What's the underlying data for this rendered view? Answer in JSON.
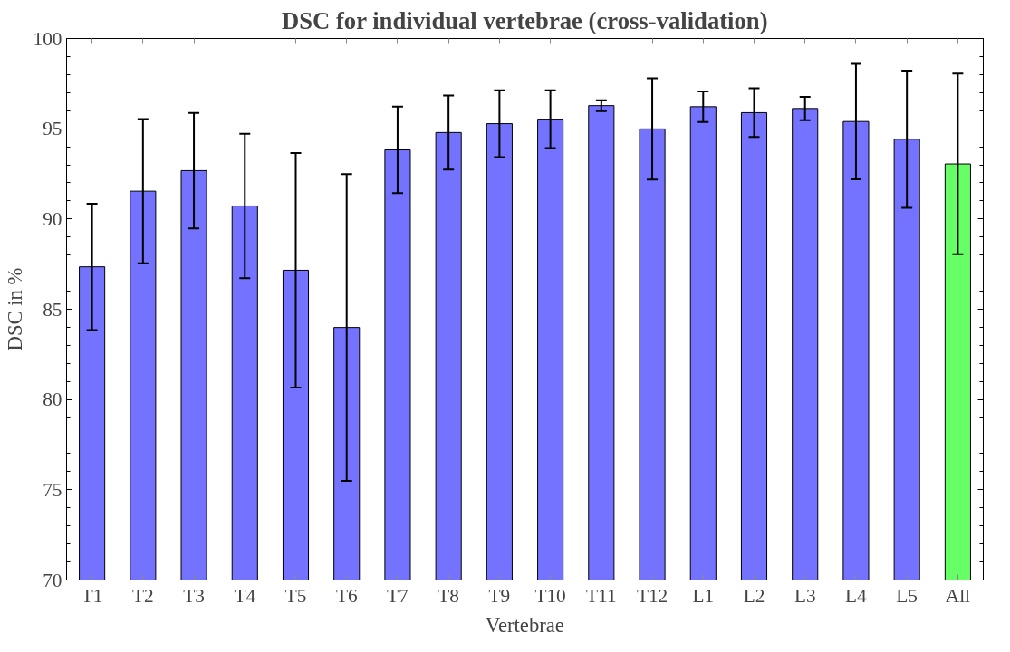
{
  "chart_data": {
    "type": "bar",
    "title": "DSC for individual vertebrae (cross-validation)",
    "xlabel": "Vertebrae",
    "ylabel": "DSC in %",
    "categories": [
      "T1",
      "T2",
      "T3",
      "T4",
      "T5",
      "T6",
      "T7",
      "T8",
      "T9",
      "T10",
      "T11",
      "T12",
      "L1",
      "L2",
      "L3",
      "L4",
      "L5",
      "All"
    ],
    "values": [
      87.35,
      91.54,
      92.68,
      90.72,
      87.16,
      83.99,
      93.83,
      94.79,
      95.28,
      95.53,
      96.28,
      94.99,
      96.22,
      95.89,
      96.12,
      95.4,
      94.42,
      93.05
    ],
    "errors": [
      3.5,
      4.0,
      3.2,
      4.0,
      6.5,
      8.5,
      2.4,
      2.05,
      1.85,
      1.6,
      0.3,
      2.8,
      0.85,
      1.35,
      0.65,
      3.2,
      3.8,
      5.0
    ],
    "colors": [
      "#7373ff",
      "#7373ff",
      "#7373ff",
      "#7373ff",
      "#7373ff",
      "#7373ff",
      "#7373ff",
      "#7373ff",
      "#7373ff",
      "#7373ff",
      "#7373ff",
      "#7373ff",
      "#7373ff",
      "#7373ff",
      "#7373ff",
      "#7373ff",
      "#7373ff",
      "#66ff66"
    ],
    "ylim": [
      70,
      100
    ],
    "yticks": [
      70,
      75,
      80,
      85,
      90,
      95,
      100
    ],
    "grid": false
  }
}
